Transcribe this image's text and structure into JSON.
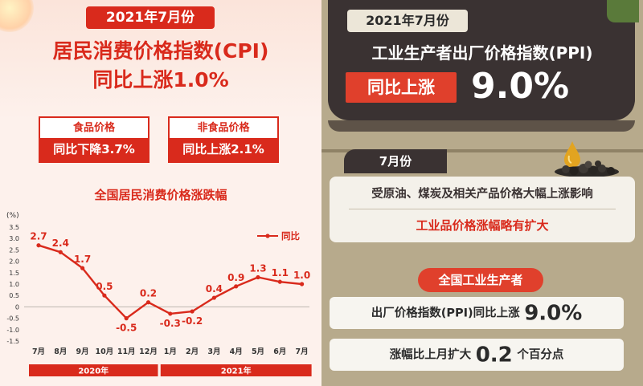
{
  "left": {
    "date_badge": "2021年7月份",
    "title_line1": "居民消费价格指数(CPI)",
    "title_line2": "同比上涨1.0%",
    "food": {
      "label": "食品价格",
      "value": "同比下降3.7%"
    },
    "nonfood": {
      "label": "非食品价格",
      "value": "同比上涨2.1%"
    }
  },
  "right": {
    "date_badge": "2021年7月份",
    "title": "工业生产者出厂价格指数(PPI)",
    "badge": "同比上涨",
    "value": "9.0%",
    "month_tag": "7月份",
    "reason_line1": "受原油、煤炭及相关产品价格大幅上涨影响",
    "reason_line2": "工业品价格涨幅略有扩大",
    "producer_tag": "全国工业生产者",
    "ppi_line": {
      "prefix": "出厂价格指数(PPI)同比上涨",
      "value": "9.0%"
    },
    "mom_line": {
      "prefix": "涨幅比上月扩大",
      "value": "0.2",
      "suffix": "个百分点"
    }
  },
  "chart_data": {
    "type": "line",
    "title": "全国居民消费价格涨跌幅",
    "ylabel": "(%)",
    "categories": [
      "7月",
      "8月",
      "9月",
      "10月",
      "11月",
      "12月",
      "1月",
      "2月",
      "3月",
      "4月",
      "5月",
      "6月",
      "7月"
    ],
    "series": [
      {
        "name": "同比",
        "values": [
          2.7,
          2.4,
          1.7,
          0.5,
          -0.5,
          0.2,
          -0.3,
          -0.2,
          0.4,
          0.9,
          1.3,
          1.1,
          1.0
        ]
      }
    ],
    "value_labels": [
      "2.7",
      "2.4",
      "1.7",
      "0.5",
      "-0.5",
      "0.2",
      "-0.3",
      "-0.2",
      "0.4",
      "0.9",
      "1.3",
      "1.1",
      "1.0"
    ],
    "yticks": [
      "3.5",
      "3.0",
      "2.5",
      "2.0",
      "1.5",
      "1.0",
      "0.5",
      "0",
      "-0.5",
      "-1.0",
      "-1.5"
    ],
    "ylim": [
      -1.5,
      3.5
    ],
    "year_groups": [
      {
        "label": "2020年",
        "start": 0,
        "end": 5
      },
      {
        "label": "2021年",
        "start": 6,
        "end": 12
      }
    ],
    "legend_position": "top-right",
    "line_color": "#d92a1c"
  }
}
